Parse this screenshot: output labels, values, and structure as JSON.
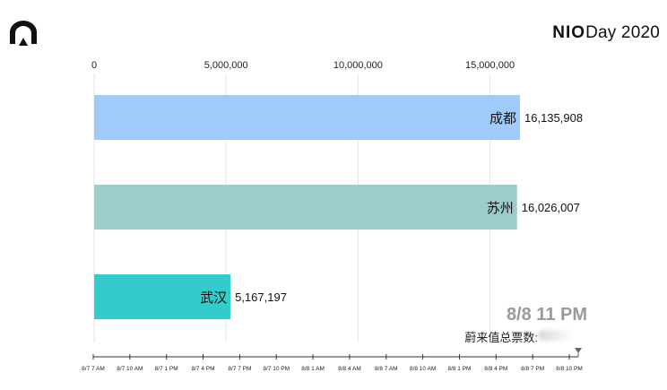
{
  "brand": {
    "nio": "NIO",
    "day": "Day 2020"
  },
  "logo_icon": "nio-logo-icon",
  "chart_data": {
    "type": "bar",
    "orientation": "horizontal",
    "categories": [
      "成都",
      "苏州",
      "武汉"
    ],
    "values": [
      16135908,
      16026007,
      5167197
    ],
    "value_labels": [
      "16,135,908",
      "16,026,007",
      "5,167,197"
    ],
    "colors": [
      "#9fcbfb",
      "#9ecccc",
      "#33cccc"
    ],
    "xlim": [
      0,
      16135908
    ],
    "xticks": [
      0,
      5000000,
      10000000,
      15000000
    ],
    "xtick_labels": [
      "0",
      "5,000,000",
      "10,000,000",
      "15,000,000"
    ],
    "grid": true,
    "timeline": {
      "labels": [
        "8/7 7 AM",
        "8/7 10 AM",
        "8/7 1 PM",
        "8/7 4 PM",
        "8/7 7 PM",
        "8/7 10 PM",
        "8/8 1 AM",
        "8/8 4 AM",
        "8/8 7 AM",
        "8/8 10 AM",
        "8/8 1 PM",
        "8/8 4 PM",
        "8/8 7 PM",
        "8/8 10 PM"
      ],
      "progress": 1.0
    }
  },
  "current_time": "8/8 11 PM",
  "total_label": "蔚来值总票数:"
}
